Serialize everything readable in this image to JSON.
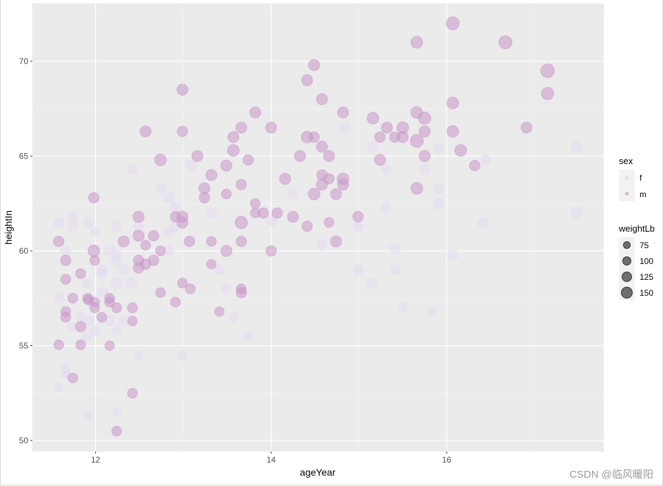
{
  "chart_data": {
    "type": "scatter",
    "xlabel": "ageYear",
    "ylabel": "heightIn",
    "xlim": [
      11.28,
      17.79
    ],
    "ylim": [
      49.42,
      73.05
    ],
    "xticks": [
      12,
      14,
      16
    ],
    "yticks": [
      50,
      55,
      60,
      65,
      70
    ],
    "grid": true,
    "legend_position": "right",
    "legend_color": {
      "title": "sex",
      "entries": [
        "f",
        "m"
      ],
      "colors": {
        "f": "#e4dcee",
        "m": "#c996c9"
      }
    },
    "legend_size": {
      "title": "weightLb",
      "entries": [
        75,
        100,
        125,
        150
      ]
    },
    "series": [
      {
        "name": "m",
        "points": [
          [
            11.58,
            60.5,
            100
          ],
          [
            11.58,
            55.05,
            90
          ],
          [
            11.66,
            59.5,
            100
          ],
          [
            11.66,
            58.5,
            90
          ],
          [
            11.66,
            56.8,
            90
          ],
          [
            11.66,
            56.5,
            90
          ],
          [
            11.74,
            57.5,
            90
          ],
          [
            11.74,
            53.3,
            90
          ],
          [
            11.83,
            58.8,
            90
          ],
          [
            11.83,
            56.0,
            100
          ],
          [
            11.83,
            55.05,
            90
          ],
          [
            11.91,
            57.5,
            90
          ],
          [
            11.92,
            57.4,
            90
          ],
          [
            11.98,
            62.8,
            100
          ],
          [
            11.98,
            60.0,
            120
          ],
          [
            11.99,
            59.5,
            90
          ],
          [
            11.99,
            57.3,
            85
          ],
          [
            11.99,
            57.0,
            90
          ],
          [
            12.07,
            56.5,
            90
          ],
          [
            12.16,
            57.5,
            90
          ],
          [
            12.16,
            57.3,
            90
          ],
          [
            12.16,
            55.0,
            85
          ],
          [
            12.24,
            57.0,
            90
          ],
          [
            12.24,
            50.5,
            90
          ],
          [
            12.32,
            60.5,
            110
          ],
          [
            12.42,
            57.0,
            90
          ],
          [
            12.42,
            56.3,
            85
          ],
          [
            12.42,
            52.5,
            90
          ],
          [
            12.49,
            61.8,
            110
          ],
          [
            12.49,
            60.8,
            110
          ],
          [
            12.49,
            59.5,
            100
          ],
          [
            12.49,
            59.1,
            100
          ],
          [
            12.57,
            60.3,
            90
          ],
          [
            12.57,
            59.3,
            100
          ],
          [
            12.57,
            66.3,
            110
          ],
          [
            12.66,
            60.8,
            100
          ],
          [
            12.66,
            59.5,
            100
          ],
          [
            12.74,
            64.8,
            120
          ],
          [
            12.74,
            60.0,
            90
          ],
          [
            12.74,
            57.8,
            90
          ],
          [
            12.91,
            57.3,
            90
          ],
          [
            12.91,
            61.8,
            100
          ],
          [
            12.99,
            68.5,
            110
          ],
          [
            12.99,
            66.3,
            100
          ],
          [
            12.99,
            61.8,
            110
          ],
          [
            12.99,
            61.5,
            110
          ],
          [
            12.99,
            58.3,
            90
          ],
          [
            13.07,
            60.5,
            100
          ],
          [
            13.08,
            58.0,
            90
          ],
          [
            13.16,
            65.0,
            110
          ],
          [
            13.24,
            62.8,
            100
          ],
          [
            13.24,
            63.3,
            110
          ],
          [
            13.32,
            64.0,
            110
          ],
          [
            13.32,
            60.5,
            90
          ],
          [
            13.32,
            59.3,
            85
          ],
          [
            13.41,
            56.8,
            85
          ],
          [
            13.49,
            64.5,
            110
          ],
          [
            13.49,
            63.0,
            90
          ],
          [
            13.49,
            60.0,
            110
          ],
          [
            13.57,
            66.0,
            110
          ],
          [
            13.57,
            65.3,
            120
          ],
          [
            13.66,
            66.5,
            110
          ],
          [
            13.66,
            63.5,
            100
          ],
          [
            13.66,
            61.5,
            130
          ],
          [
            13.66,
            60.5,
            100
          ],
          [
            13.66,
            58.0,
            90
          ],
          [
            13.66,
            57.8,
            100
          ],
          [
            13.74,
            64.8,
            100
          ],
          [
            13.82,
            67.3,
            110
          ],
          [
            13.82,
            62.5,
            90
          ],
          [
            13.82,
            62.0,
            90
          ],
          [
            13.91,
            62.0,
            100
          ],
          [
            14.0,
            66.5,
            110
          ],
          [
            14.0,
            60.0,
            100
          ],
          [
            14.07,
            62.0,
            100
          ],
          [
            14.16,
            63.8,
            110
          ],
          [
            14.25,
            61.8,
            110
          ],
          [
            14.33,
            65.0,
            110
          ],
          [
            14.41,
            69.0,
            110
          ],
          [
            14.41,
            66.0,
            120
          ],
          [
            14.41,
            61.3,
            100
          ],
          [
            14.49,
            69.8,
            110
          ],
          [
            14.49,
            66.0,
            100
          ],
          [
            14.49,
            63.0,
            120
          ],
          [
            14.58,
            68.0,
            110
          ],
          [
            14.58,
            65.5,
            110
          ],
          [
            14.58,
            64.0,
            100
          ],
          [
            14.58,
            63.5,
            110
          ],
          [
            14.66,
            65.0,
            110
          ],
          [
            14.66,
            63.8,
            100
          ],
          [
            14.66,
            61.5,
            90
          ],
          [
            14.74,
            63.0,
            110
          ],
          [
            14.74,
            60.5,
            110
          ],
          [
            14.82,
            67.3,
            110
          ],
          [
            14.82,
            63.8,
            120
          ],
          [
            14.82,
            63.5,
            110
          ],
          [
            14.99,
            61.8,
            100
          ],
          [
            15.16,
            67.0,
            120
          ],
          [
            15.24,
            64.8,
            110
          ],
          [
            15.24,
            66.0,
            100
          ],
          [
            15.32,
            66.5,
            110
          ],
          [
            15.41,
            66.0,
            100
          ],
          [
            15.5,
            66.5,
            120
          ],
          [
            15.5,
            66.0,
            110
          ],
          [
            15.66,
            71.0,
            120
          ],
          [
            15.66,
            67.3,
            120
          ],
          [
            15.66,
            65.8,
            140
          ],
          [
            15.66,
            63.3,
            120
          ],
          [
            15.75,
            67.0,
            130
          ],
          [
            15.75,
            66.3,
            110
          ],
          [
            15.75,
            65.0,
            110
          ],
          [
            16.07,
            72.0,
            140
          ],
          [
            16.07,
            67.8,
            120
          ],
          [
            16.07,
            66.3,
            120
          ],
          [
            16.16,
            65.3,
            120
          ],
          [
            16.32,
            64.5,
            100
          ],
          [
            16.67,
            71.0,
            140
          ],
          [
            16.91,
            66.5,
            110
          ],
          [
            17.15,
            69.5,
            150
          ],
          [
            17.15,
            68.3,
            130
          ]
        ]
      },
      {
        "name": "f",
        "points": [
          [
            11.58,
            61.5,
            110
          ],
          [
            11.74,
            61.8,
            100
          ],
          [
            11.74,
            61.3,
            100
          ],
          [
            11.92,
            61.5,
            110
          ],
          [
            12.0,
            61.0,
            100
          ],
          [
            12.24,
            61.3,
            110
          ],
          [
            12.49,
            61.3,
            110
          ],
          [
            12.75,
            63.3,
            110
          ],
          [
            12.83,
            62.8,
            110
          ],
          [
            12.91,
            62.3,
            110
          ],
          [
            12.91,
            61.3,
            110
          ],
          [
            12.83,
            61.0,
            110
          ],
          [
            13.32,
            62.0,
            110
          ],
          [
            11.66,
            60.0,
            100
          ],
          [
            12.16,
            60.0,
            120
          ],
          [
            12.24,
            59.8,
            100
          ],
          [
            12.24,
            59.5,
            110
          ],
          [
            12.83,
            60.0,
            110
          ],
          [
            12.07,
            59.0,
            100
          ],
          [
            12.07,
            58.8,
            100
          ],
          [
            12.32,
            59.0,
            110
          ],
          [
            11.91,
            58.3,
            100
          ],
          [
            12.24,
            58.3,
            120
          ],
          [
            12.41,
            58.3,
            110
          ],
          [
            12.08,
            57.8,
            110
          ],
          [
            11.58,
            57.5,
            110
          ],
          [
            13.41,
            59.0,
            100
          ],
          [
            13.49,
            58.0,
            100
          ],
          [
            13.57,
            56.5,
            100
          ],
          [
            11.83,
            56.5,
            100
          ],
          [
            11.92,
            56.3,
            110
          ],
          [
            12.16,
            56.3,
            110
          ],
          [
            12.32,
            56.3,
            100
          ],
          [
            11.73,
            56.0,
            100
          ],
          [
            11.99,
            55.8,
            100
          ],
          [
            12.24,
            55.8,
            100
          ],
          [
            11.91,
            55.5,
            110
          ],
          [
            12.49,
            54.5,
            90
          ],
          [
            12.99,
            54.5,
            90
          ],
          [
            11.66,
            53.8,
            90
          ],
          [
            11.66,
            53.5,
            100
          ],
          [
            11.58,
            52.8,
            90
          ],
          [
            11.91,
            51.3,
            85
          ],
          [
            12.24,
            51.5,
            90
          ],
          [
            12.42,
            64.3,
            110
          ],
          [
            13.74,
            55.5,
            90
          ],
          [
            14.99,
            59.0,
            110
          ],
          [
            15.42,
            59.0,
            100
          ],
          [
            15.5,
            57.0,
            100
          ],
          [
            15.83,
            56.8,
            100
          ],
          [
            15.91,
            62.5,
            120
          ],
          [
            15.91,
            63.3,
            110
          ],
          [
            16.07,
            59.8,
            110
          ],
          [
            16.41,
            61.5,
            110
          ],
          [
            16.45,
            64.8,
            110
          ],
          [
            17.48,
            65.5,
            120
          ],
          [
            17.48,
            62.0,
            120
          ],
          [
            15.15,
            58.3,
            110
          ],
          [
            15.41,
            60.1,
            110
          ],
          [
            14.99,
            61.3,
            110
          ],
          [
            14.58,
            60.3,
            110
          ],
          [
            14.25,
            63.0,
            110
          ],
          [
            14.01,
            61.6,
            110
          ],
          [
            15.31,
            62.3,
            110
          ],
          [
            15.31,
            64.3,
            110
          ],
          [
            15.91,
            65.4,
            110
          ],
          [
            14.84,
            66.5,
            120
          ],
          [
            15.16,
            65.5,
            110
          ],
          [
            15.75,
            64.3,
            110
          ],
          [
            13.09,
            64.5,
            110
          ]
        ]
      }
    ]
  },
  "watermark": "CSDN @临风暖阳"
}
